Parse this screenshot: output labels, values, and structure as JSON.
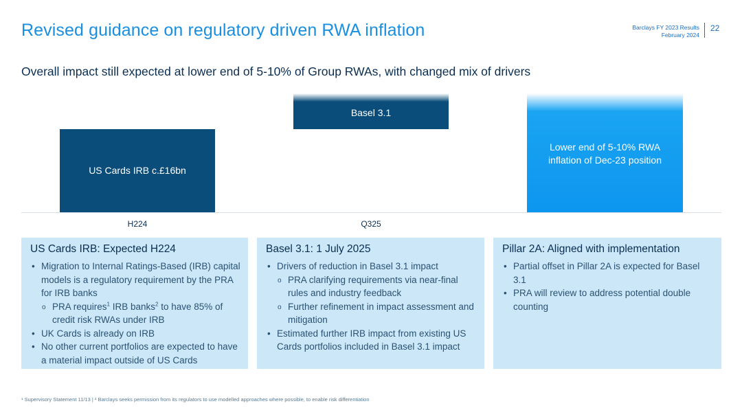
{
  "header": {
    "title": "Revised guidance on regulatory driven RWA inflation",
    "meta_line1": "Barclays FY 2023 Results",
    "meta_line2": "February 2024",
    "page_number": "22"
  },
  "subtitle": "Overall impact still expected at lower end of 5-10% of Group RWAs, with changed mix of drivers",
  "chart": {
    "bars": [
      {
        "label": "US Cards IRB c.£16bn",
        "color": "#0a4d7a"
      },
      {
        "label": "Basel 3.1",
        "color": "#0a4d7a"
      },
      {
        "label": "Lower end of 5-10% RWA inflation of Dec-23 position",
        "color": "#0d96ee"
      }
    ],
    "x_labels": [
      "H224",
      "Q325"
    ]
  },
  "panels": [
    {
      "title": "US Cards IRB: Expected H224",
      "b1": "Migration to Internal Ratings-Based (IRB) capital models is a regulatory requirement by the PRA for IRB banks",
      "s1a": "PRA requires",
      "s1sup1": "1",
      "s1b": " IRB banks",
      "s1sup2": "2",
      "s1c": " to have 85% of credit risk RWAs under IRB",
      "b2": "UK Cards is already on IRB",
      "b3": "No other current portfolios are expected to have a material impact outside of US Cards"
    },
    {
      "title": "Basel 3.1: 1 July 2025",
      "b1": "Drivers of reduction in Basel 3.1 impact",
      "s1": "PRA clarifying requirements via near-final rules and industry feedback",
      "s2": "Further refinement in impact assessment and mitigation",
      "b2": "Estimated further IRB impact from existing US Cards portfolios included in Basel 3.1 impact"
    },
    {
      "title": "Pillar 2A: Aligned with implementation",
      "b1": "Partial offset in Pillar 2A is expected for Basel  3.1",
      "b2": "PRA will review to address potential double counting"
    }
  ],
  "footnote": "¹ Supervisory Statement 11/13 | ² Barclays seeks permission from its regulators to use modelled approaches where possible, to enable risk differentiation"
}
